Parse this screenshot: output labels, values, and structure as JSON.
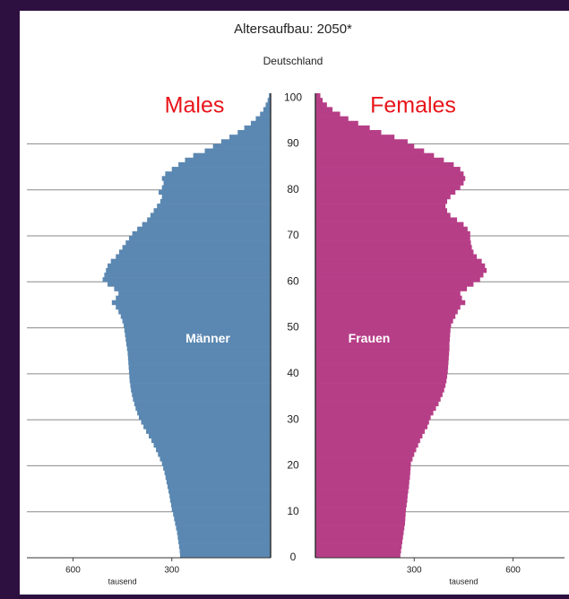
{
  "chart_data": {
    "type": "pyramid",
    "title": "Altersaufbau: 2050*",
    "subtitle": "Deutschland",
    "value_label": "tausend",
    "annotations": [
      "Males",
      "Females"
    ],
    "annotation_color": "#e8141a",
    "x": [
      0,
      1,
      2,
      3,
      4,
      5,
      6,
      7,
      8,
      9,
      10,
      11,
      12,
      13,
      14,
      15,
      16,
      17,
      18,
      19,
      20,
      21,
      22,
      23,
      24,
      25,
      26,
      27,
      28,
      29,
      30,
      31,
      32,
      33,
      34,
      35,
      36,
      37,
      38,
      39,
      40,
      41,
      42,
      43,
      44,
      45,
      46,
      47,
      48,
      49,
      50,
      51,
      52,
      53,
      54,
      55,
      56,
      57,
      58,
      59,
      60,
      61,
      62,
      63,
      64,
      65,
      66,
      67,
      68,
      69,
      70,
      71,
      72,
      73,
      74,
      75,
      76,
      77,
      78,
      79,
      80,
      81,
      82,
      83,
      84,
      85,
      86,
      87,
      88,
      89,
      90,
      91,
      92,
      93,
      94,
      95,
      96,
      97,
      98,
      99,
      100
    ],
    "xlim": [
      0,
      101
    ],
    "xticks": [
      0,
      10,
      20,
      30,
      40,
      50,
      60,
      70,
      80,
      90,
      100
    ],
    "ylim": [
      0,
      740
    ],
    "yticks": [
      300,
      600
    ],
    "grid": true,
    "series": [
      {
        "name": "Männer",
        "color": "#5b88b2",
        "side": "left",
        "values": [
          275,
          276,
          278,
          280,
          282,
          284,
          287,
          290,
          293,
          296,
          300,
          302,
          305,
          307,
          310,
          313,
          316,
          319,
          322,
          326,
          330,
          336,
          342,
          348,
          355,
          362,
          370,
          378,
          386,
          393,
          400,
          405,
          410,
          414,
          418,
          421,
          424,
          426,
          428,
          429,
          430,
          431,
          432,
          433,
          434,
          436,
          438,
          440,
          442,
          444,
          446,
          450,
          455,
          462,
          470,
          482,
          470,
          462,
          475,
          495,
          510,
          505,
          500,
          495,
          485,
          470,
          460,
          450,
          440,
          430,
          420,
          405,
          390,
          375,
          365,
          355,
          345,
          335,
          330,
          340,
          330,
          325,
          330,
          320,
          300,
          280,
          260,
          235,
          200,
          175,
          150,
          125,
          100,
          80,
          60,
          45,
          32,
          22,
          15,
          9,
          5
        ]
      },
      {
        "name": "Frauen",
        "color": "#b63e87",
        "side": "right",
        "values": [
          258,
          260,
          262,
          264,
          266,
          268,
          270,
          272,
          273,
          274,
          275,
          277,
          279,
          280,
          282,
          284,
          285,
          287,
          288,
          289,
          290,
          295,
          300,
          306,
          312,
          318,
          325,
          332,
          340,
          345,
          350,
          358,
          366,
          374,
          380,
          386,
          391,
          395,
          398,
          400,
          402,
          403,
          404,
          405,
          406,
          407,
          407,
          408,
          409,
          410,
          412,
          418,
          425,
          432,
          440,
          455,
          445,
          440,
          460,
          480,
          500,
          510,
          520,
          515,
          505,
          490,
          480,
          475,
          472,
          470,
          470,
          462,
          450,
          430,
          410,
          400,
          395,
          400,
          410,
          425,
          440,
          450,
          455,
          450,
          440,
          420,
          390,
          360,
          330,
          300,
          280,
          240,
          200,
          165,
          130,
          100,
          75,
          52,
          35,
          22,
          15
        ]
      }
    ]
  }
}
